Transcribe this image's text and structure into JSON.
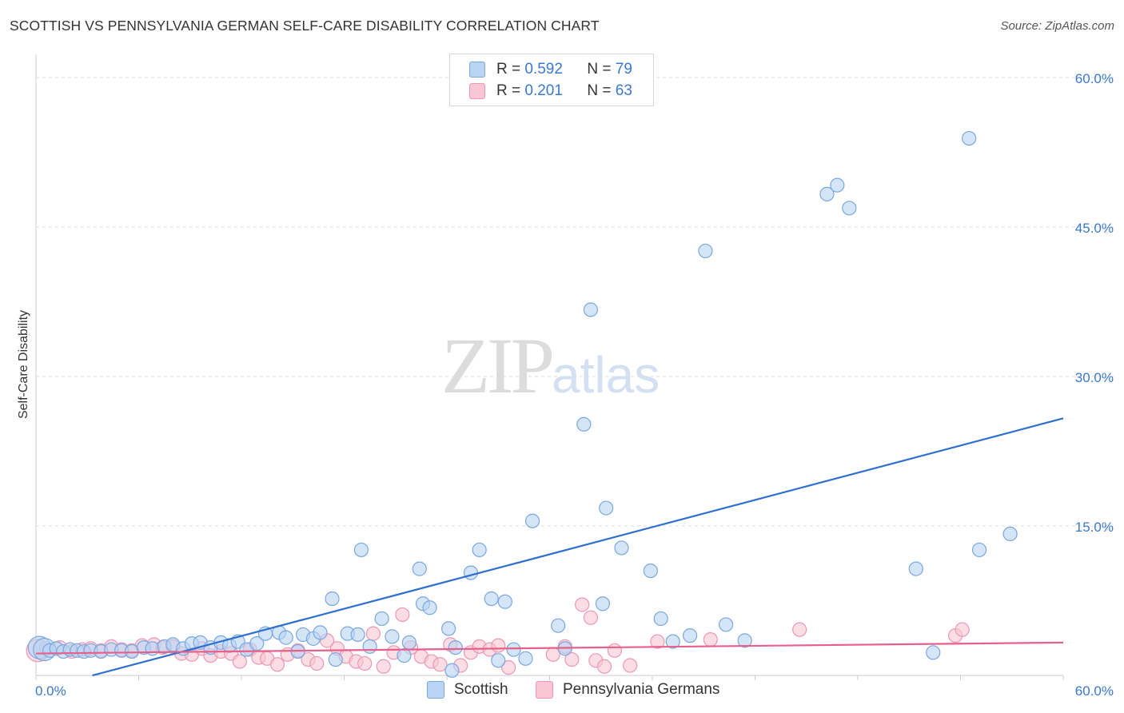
{
  "header": {
    "title": "SCOTTISH VS PENNSYLVANIA GERMAN SELF-CARE DISABILITY CORRELATION CHART",
    "source": "Source: ZipAtlas.com"
  },
  "watermark": {
    "zip": "ZIP",
    "atlas": "atlas"
  },
  "legend": {
    "rows": [
      {
        "r_label": "R =",
        "r_value": "0.592",
        "n_label": "N =",
        "n_value": "79"
      },
      {
        "r_label": "R =",
        "r_value": "0.201",
        "n_label": "N =",
        "n_value": "63"
      }
    ]
  },
  "bottom_legend": {
    "items": [
      "Scottish",
      "Pennsylvania Germans"
    ]
  },
  "colors": {
    "scottish_fill": "#b8d3f4",
    "scottish_stroke": "#7aa7e0",
    "scottish_line": "#2e6fd0",
    "pg_fill": "#f8c6d5",
    "pg_stroke": "#ee97b2",
    "pg_line": "#e7608a",
    "tick_text": "#3a78d0",
    "grid": "#dddddd"
  },
  "chart_data": {
    "type": "scatter",
    "title": "SCOTTISH VS PENNSYLVANIA GERMAN SELF-CARE DISABILITY CORRELATION CHART",
    "xlabel": "",
    "ylabel": "Self-Care Disability",
    "xlim": [
      0,
      60
    ],
    "ylim": [
      0,
      60
    ],
    "x_tick_labels": [
      "0.0%",
      "60.0%"
    ],
    "y_ticks": [
      15,
      30,
      45,
      60
    ],
    "y_tick_labels": [
      "15.0%",
      "30.0%",
      "45.0%",
      "60.0%"
    ],
    "grid": true,
    "legend_position": "top-center",
    "series": [
      {
        "name": "Scottish",
        "R": 0.592,
        "N": 79,
        "trend": {
          "x0": 0,
          "y0": -1.5,
          "x1": 60,
          "y1": 25.8
        },
        "points": [
          [
            0.2,
            2.8,
            "lg"
          ],
          [
            0.5,
            2.6,
            "lg"
          ],
          [
            0.8,
            2.5
          ],
          [
            1.2,
            2.7
          ],
          [
            1.6,
            2.4
          ],
          [
            2.0,
            2.6
          ],
          [
            2.4,
            2.5
          ],
          [
            2.8,
            2.4
          ],
          [
            3.2,
            2.5
          ],
          [
            3.8,
            2.4
          ],
          [
            4.4,
            2.6
          ],
          [
            5.0,
            2.5
          ],
          [
            5.6,
            2.4
          ],
          [
            6.3,
            2.8
          ],
          [
            6.8,
            2.7
          ],
          [
            7.5,
            2.9
          ],
          [
            8.0,
            3.1
          ],
          [
            8.6,
            2.7
          ],
          [
            9.1,
            3.2
          ],
          [
            9.6,
            3.3
          ],
          [
            10.2,
            2.8
          ],
          [
            10.8,
            3.3
          ],
          [
            11.3,
            3.0
          ],
          [
            11.8,
            3.4
          ],
          [
            12.3,
            2.6
          ],
          [
            12.9,
            3.2
          ],
          [
            13.4,
            4.2
          ],
          [
            14.2,
            4.3
          ],
          [
            14.6,
            3.8
          ],
          [
            15.3,
            2.4
          ],
          [
            15.6,
            4.1
          ],
          [
            16.2,
            3.7
          ],
          [
            16.6,
            4.3
          ],
          [
            17.3,
            7.7
          ],
          [
            17.5,
            1.6
          ],
          [
            18.2,
            4.2
          ],
          [
            18.8,
            4.1
          ],
          [
            19.0,
            12.6
          ],
          [
            19.5,
            2.9
          ],
          [
            20.2,
            5.7
          ],
          [
            20.8,
            3.9
          ],
          [
            21.5,
            2.0
          ],
          [
            21.8,
            3.3
          ],
          [
            22.4,
            10.7
          ],
          [
            22.6,
            7.2
          ],
          [
            23.0,
            6.8
          ],
          [
            24.1,
            4.7
          ],
          [
            24.5,
            2.8
          ],
          [
            25.4,
            10.3
          ],
          [
            25.9,
            12.6
          ],
          [
            26.6,
            7.7
          ],
          [
            27.0,
            1.5
          ],
          [
            27.4,
            7.4
          ],
          [
            27.9,
            2.6
          ],
          [
            28.6,
            1.7
          ],
          [
            29.0,
            15.5
          ],
          [
            30.5,
            5.0
          ],
          [
            30.9,
            2.7
          ],
          [
            32.0,
            25.2
          ],
          [
            32.4,
            36.7
          ],
          [
            33.1,
            7.2
          ],
          [
            33.3,
            16.8
          ],
          [
            34.2,
            12.8
          ],
          [
            35.9,
            10.5
          ],
          [
            36.5,
            5.7
          ],
          [
            37.2,
            3.4
          ],
          [
            38.2,
            4.0
          ],
          [
            39.1,
            42.6
          ],
          [
            40.3,
            5.1
          ],
          [
            41.4,
            3.5
          ],
          [
            46.2,
            48.3
          ],
          [
            46.8,
            49.2
          ],
          [
            47.5,
            46.9
          ],
          [
            51.4,
            10.7
          ],
          [
            52.4,
            2.3
          ],
          [
            54.5,
            53.9
          ],
          [
            55.1,
            12.6
          ],
          [
            56.9,
            14.2
          ],
          [
            24.3,
            0.5
          ]
        ]
      },
      {
        "name": "Pennsylvania Germans",
        "R": 0.201,
        "N": 63,
        "trend": {
          "x0": 0,
          "y0": 2.2,
          "x1": 60,
          "y1": 3.3
        },
        "points": [
          [
            0.1,
            2.5,
            "lg"
          ],
          [
            0.6,
            2.7
          ],
          [
            1.4,
            2.8
          ],
          [
            2.1,
            2.4
          ],
          [
            2.7,
            2.6
          ],
          [
            3.2,
            2.7
          ],
          [
            3.8,
            2.5
          ],
          [
            4.4,
            2.9
          ],
          [
            5.0,
            2.6
          ],
          [
            5.6,
            2.5
          ],
          [
            6.2,
            3.0
          ],
          [
            6.9,
            3.1
          ],
          [
            7.4,
            2.8
          ],
          [
            8.0,
            2.9
          ],
          [
            8.5,
            2.2
          ],
          [
            9.1,
            2.1
          ],
          [
            9.7,
            2.7
          ],
          [
            10.2,
            2.0
          ],
          [
            10.8,
            2.4
          ],
          [
            11.4,
            2.2
          ],
          [
            11.9,
            1.4
          ],
          [
            12.5,
            2.6
          ],
          [
            13.0,
            1.8
          ],
          [
            13.5,
            1.7
          ],
          [
            14.1,
            1.1
          ],
          [
            14.7,
            2.1
          ],
          [
            15.3,
            2.5
          ],
          [
            15.9,
            1.6
          ],
          [
            16.4,
            1.2
          ],
          [
            17.0,
            3.5
          ],
          [
            17.6,
            2.7
          ],
          [
            18.1,
            1.9
          ],
          [
            18.7,
            1.4
          ],
          [
            19.2,
            1.2
          ],
          [
            19.7,
            4.2
          ],
          [
            20.3,
            0.9
          ],
          [
            20.9,
            2.3
          ],
          [
            21.4,
            6.1
          ],
          [
            21.9,
            2.8
          ],
          [
            22.5,
            1.9
          ],
          [
            23.1,
            1.4
          ],
          [
            23.6,
            1.1
          ],
          [
            24.2,
            3.1
          ],
          [
            24.8,
            1.0
          ],
          [
            25.4,
            2.3
          ],
          [
            25.9,
            2.9
          ],
          [
            26.5,
            2.6
          ],
          [
            27.0,
            3.0
          ],
          [
            27.6,
            0.8
          ],
          [
            30.2,
            2.1
          ],
          [
            30.9,
            2.9
          ],
          [
            31.3,
            1.6
          ],
          [
            31.9,
            7.1
          ],
          [
            32.4,
            5.8
          ],
          [
            32.7,
            1.5
          ],
          [
            33.2,
            0.9
          ],
          [
            33.8,
            2.5
          ],
          [
            34.7,
            1.0
          ],
          [
            36.3,
            3.4
          ],
          [
            39.4,
            3.6
          ],
          [
            44.6,
            4.6
          ],
          [
            53.7,
            4.0
          ],
          [
            54.1,
            4.6
          ]
        ]
      }
    ]
  }
}
